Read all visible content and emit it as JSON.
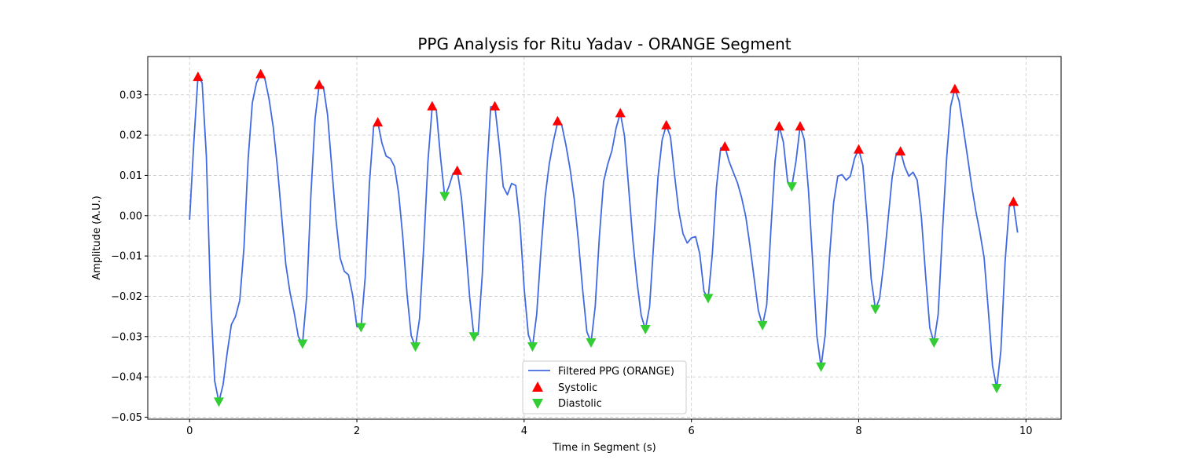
{
  "chart_data": {
    "type": "line",
    "title": "PPG Analysis for Ritu Yadav - ORANGE Segment",
    "xlabel": "Time in Segment (s)",
    "ylabel": "Amplitude (A.U.)",
    "xlim": [
      -0.5,
      10.42
    ],
    "ylim": [
      -0.0505,
      0.0395
    ],
    "xticks": [
      0,
      2,
      4,
      6,
      8,
      10
    ],
    "xtick_labels": [
      "0",
      "2",
      "4",
      "6",
      "8",
      "10"
    ],
    "yticks": [
      -0.05,
      -0.04,
      -0.03,
      -0.02,
      -0.01,
      0.0,
      0.01,
      0.02,
      0.03
    ],
    "ytick_labels": [
      "−0.05",
      "−0.04",
      "−0.03",
      "−0.02",
      "−0.01",
      "0.00",
      "0.01",
      "0.02",
      "0.03"
    ],
    "grid": true,
    "legend_position": "bottom-center",
    "colors": {
      "line": "#4169e1",
      "systolic": "#ff0000",
      "diastolic": "#32cd32"
    },
    "series": [
      {
        "name": "Filtered PPG (ORANGE)",
        "kind": "line",
        "points": [
          [
            0.0,
            -0.001
          ],
          [
            0.05,
            0.018
          ],
          [
            0.1,
            0.0345
          ],
          [
            0.15,
            0.033
          ],
          [
            0.2,
            0.015
          ],
          [
            0.25,
            -0.02
          ],
          [
            0.3,
            -0.041
          ],
          [
            0.35,
            -0.0462
          ],
          [
            0.4,
            -0.042
          ],
          [
            0.45,
            -0.034
          ],
          [
            0.5,
            -0.027
          ],
          [
            0.55,
            -0.025
          ],
          [
            0.6,
            -0.021
          ],
          [
            0.65,
            -0.008
          ],
          [
            0.7,
            0.014
          ],
          [
            0.75,
            0.028
          ],
          [
            0.8,
            0.033
          ],
          [
            0.85,
            0.035
          ],
          [
            0.9,
            0.034
          ],
          [
            0.95,
            0.029
          ],
          [
            1.0,
            0.022
          ],
          [
            1.05,
            0.012
          ],
          [
            1.1,
            0.0
          ],
          [
            1.15,
            -0.012
          ],
          [
            1.2,
            -0.019
          ],
          [
            1.25,
            -0.024
          ],
          [
            1.3,
            -0.03
          ],
          [
            1.35,
            -0.0318
          ],
          [
            1.4,
            -0.02
          ],
          [
            1.45,
            0.005
          ],
          [
            1.5,
            0.024
          ],
          [
            1.55,
            0.0325
          ],
          [
            1.6,
            0.032
          ],
          [
            1.65,
            0.025
          ],
          [
            1.7,
            0.012
          ],
          [
            1.75,
            -0.001
          ],
          [
            1.8,
            -0.0105
          ],
          [
            1.85,
            -0.0138
          ],
          [
            1.9,
            -0.0147
          ],
          [
            1.95,
            -0.0198
          ],
          [
            2.0,
            -0.0275
          ],
          [
            2.05,
            -0.0277
          ],
          [
            2.1,
            -0.0152
          ],
          [
            2.15,
            0.008
          ],
          [
            2.2,
            0.022
          ],
          [
            2.25,
            0.0232
          ],
          [
            2.3,
            0.018
          ],
          [
            2.35,
            0.0148
          ],
          [
            2.4,
            0.0142
          ],
          [
            2.45,
            0.0122
          ],
          [
            2.5,
            0.0055
          ],
          [
            2.55,
            -0.0055
          ],
          [
            2.6,
            -0.0195
          ],
          [
            2.65,
            -0.0298
          ],
          [
            2.7,
            -0.0325
          ],
          [
            2.75,
            -0.0255
          ],
          [
            2.8,
            -0.0075
          ],
          [
            2.85,
            0.0135
          ],
          [
            2.9,
            0.0268
          ],
          [
            2.95,
            0.0262
          ],
          [
            3.0,
            0.0145
          ],
          [
            3.05,
            0.0048
          ],
          [
            3.1,
            0.0072
          ],
          [
            3.15,
            0.0105
          ],
          [
            3.2,
            0.0112
          ],
          [
            3.25,
            0.0045
          ],
          [
            3.3,
            -0.0072
          ],
          [
            3.35,
            -0.0205
          ],
          [
            3.4,
            -0.03
          ],
          [
            3.45,
            -0.0295
          ],
          [
            3.5,
            -0.0145
          ],
          [
            3.55,
            0.0095
          ],
          [
            3.6,
            0.027
          ],
          [
            3.65,
            0.0272
          ],
          [
            3.7,
            0.018
          ],
          [
            3.75,
            0.0072
          ],
          [
            3.8,
            0.0052
          ],
          [
            3.85,
            0.008
          ],
          [
            3.9,
            0.0075
          ],
          [
            3.95,
            -0.002
          ],
          [
            4.0,
            -0.018
          ],
          [
            4.05,
            -0.0295
          ],
          [
            4.1,
            -0.0325
          ],
          [
            4.15,
            -0.0245
          ],
          [
            4.2,
            -0.009
          ],
          [
            4.25,
            0.0045
          ],
          [
            4.3,
            0.0128
          ],
          [
            4.35,
            0.0185
          ],
          [
            4.4,
            0.0232
          ],
          [
            4.45,
            0.0225
          ],
          [
            4.5,
            0.0175
          ],
          [
            4.55,
            0.0115
          ],
          [
            4.6,
            0.004
          ],
          [
            4.65,
            -0.0065
          ],
          [
            4.7,
            -0.0185
          ],
          [
            4.75,
            -0.0288
          ],
          [
            4.8,
            -0.0315
          ],
          [
            4.85,
            -0.0225
          ],
          [
            4.9,
            -0.005
          ],
          [
            4.95,
            0.0085
          ],
          [
            5.0,
            0.0128
          ],
          [
            5.05,
            0.0162
          ],
          [
            5.1,
            0.0218
          ],
          [
            5.15,
            0.0255
          ],
          [
            5.2,
            0.0198
          ],
          [
            5.25,
            0.0068
          ],
          [
            5.3,
            -0.0062
          ],
          [
            5.35,
            -0.0165
          ],
          [
            5.4,
            -0.0248
          ],
          [
            5.45,
            -0.0282
          ],
          [
            5.5,
            -0.0225
          ],
          [
            5.55,
            -0.0065
          ],
          [
            5.6,
            0.0095
          ],
          [
            5.65,
            0.0188
          ],
          [
            5.7,
            0.0225
          ],
          [
            5.75,
            0.0195
          ],
          [
            5.8,
            0.0098
          ],
          [
            5.85,
            0.001
          ],
          [
            5.9,
            -0.0045
          ],
          [
            5.95,
            -0.0068
          ],
          [
            6.0,
            -0.0055
          ],
          [
            6.05,
            -0.0052
          ],
          [
            6.1,
            -0.0095
          ],
          [
            6.15,
            -0.0188
          ],
          [
            6.2,
            -0.0205
          ],
          [
            6.25,
            -0.0095
          ],
          [
            6.3,
            0.0072
          ],
          [
            6.35,
            0.0168
          ],
          [
            6.4,
            0.0172
          ],
          [
            6.45,
            0.0135
          ],
          [
            6.5,
            0.0108
          ],
          [
            6.55,
            0.0082
          ],
          [
            6.6,
            0.0045
          ],
          [
            6.65,
            -0.0002
          ],
          [
            6.7,
            -0.0075
          ],
          [
            6.75,
            -0.0155
          ],
          [
            6.8,
            -0.0235
          ],
          [
            6.85,
            -0.0272
          ],
          [
            6.9,
            -0.0222
          ],
          [
            6.95,
            -0.0035
          ],
          [
            7.0,
            0.0135
          ],
          [
            7.05,
            0.0222
          ],
          [
            7.1,
            0.0182
          ],
          [
            7.15,
            0.0085
          ],
          [
            7.2,
            0.0072
          ],
          [
            7.25,
            0.0135
          ],
          [
            7.3,
            0.0222
          ],
          [
            7.35,
            0.0188
          ],
          [
            7.4,
            0.0062
          ],
          [
            7.45,
            -0.0115
          ],
          [
            7.5,
            -0.0298
          ],
          [
            7.55,
            -0.0375
          ],
          [
            7.6,
            -0.0295
          ],
          [
            7.65,
            -0.0105
          ],
          [
            7.7,
            0.0032
          ],
          [
            7.75,
            0.0098
          ],
          [
            7.8,
            0.0102
          ],
          [
            7.85,
            0.0088
          ],
          [
            7.9,
            0.0098
          ],
          [
            7.95,
            0.0142
          ],
          [
            8.0,
            0.0165
          ],
          [
            8.05,
            0.0125
          ],
          [
            8.1,
            -0.0005
          ],
          [
            8.15,
            -0.0158
          ],
          [
            8.2,
            -0.0232
          ],
          [
            8.25,
            -0.0205
          ],
          [
            8.3,
            -0.0118
          ],
          [
            8.35,
            -0.0012
          ],
          [
            8.4,
            0.0095
          ],
          [
            8.45,
            0.0155
          ],
          [
            8.5,
            0.016
          ],
          [
            8.55,
            0.0122
          ],
          [
            8.6,
            0.0098
          ],
          [
            8.65,
            0.0108
          ],
          [
            8.7,
            0.0088
          ],
          [
            8.75,
            -0.0005
          ],
          [
            8.8,
            -0.0148
          ],
          [
            8.85,
            -0.0278
          ],
          [
            8.9,
            -0.0315
          ],
          [
            8.95,
            -0.0245
          ],
          [
            9.0,
            -0.0045
          ],
          [
            9.05,
            0.0138
          ],
          [
            9.1,
            0.0272
          ],
          [
            9.15,
            0.0315
          ],
          [
            9.2,
            0.0285
          ],
          [
            9.25,
            0.0218
          ],
          [
            9.3,
            0.0148
          ],
          [
            9.35,
            0.0075
          ],
          [
            9.4,
            0.0012
          ],
          [
            9.45,
            -0.0042
          ],
          [
            9.5,
            -0.0105
          ],
          [
            9.55,
            -0.0235
          ],
          [
            9.6,
            -0.0372
          ],
          [
            9.65,
            -0.0428
          ],
          [
            9.7,
            -0.0335
          ],
          [
            9.75,
            -0.0115
          ],
          [
            9.8,
            0.0022
          ],
          [
            9.85,
            0.0032
          ],
          [
            9.9,
            -0.0042
          ]
        ]
      },
      {
        "name": "Systolic",
        "kind": "marker-up",
        "points": [
          [
            0.1,
            0.0345
          ],
          [
            0.85,
            0.0352
          ],
          [
            1.55,
            0.0325
          ],
          [
            2.25,
            0.0232
          ],
          [
            2.9,
            0.0272
          ],
          [
            3.2,
            0.0112
          ],
          [
            3.65,
            0.0272
          ],
          [
            4.4,
            0.0235
          ],
          [
            5.15,
            0.0255
          ],
          [
            5.7,
            0.0225
          ],
          [
            6.4,
            0.0172
          ],
          [
            7.05,
            0.0222
          ],
          [
            7.3,
            0.0222
          ],
          [
            8.0,
            0.0165
          ],
          [
            8.5,
            0.016
          ],
          [
            9.15,
            0.0315
          ],
          [
            9.85,
            0.0035
          ]
        ]
      },
      {
        "name": "Diastolic",
        "kind": "marker-down",
        "points": [
          [
            0.35,
            -0.0462
          ],
          [
            1.35,
            -0.0318
          ],
          [
            2.05,
            -0.0277
          ],
          [
            2.7,
            -0.0325
          ],
          [
            3.05,
            0.0048
          ],
          [
            3.4,
            -0.03
          ],
          [
            4.1,
            -0.0325
          ],
          [
            4.8,
            -0.0315
          ],
          [
            5.45,
            -0.0282
          ],
          [
            6.2,
            -0.0205
          ],
          [
            6.85,
            -0.0272
          ],
          [
            7.2,
            0.0072
          ],
          [
            7.55,
            -0.0375
          ],
          [
            8.2,
            -0.0232
          ],
          [
            8.9,
            -0.0315
          ],
          [
            9.65,
            -0.0428
          ]
        ]
      }
    ]
  }
}
